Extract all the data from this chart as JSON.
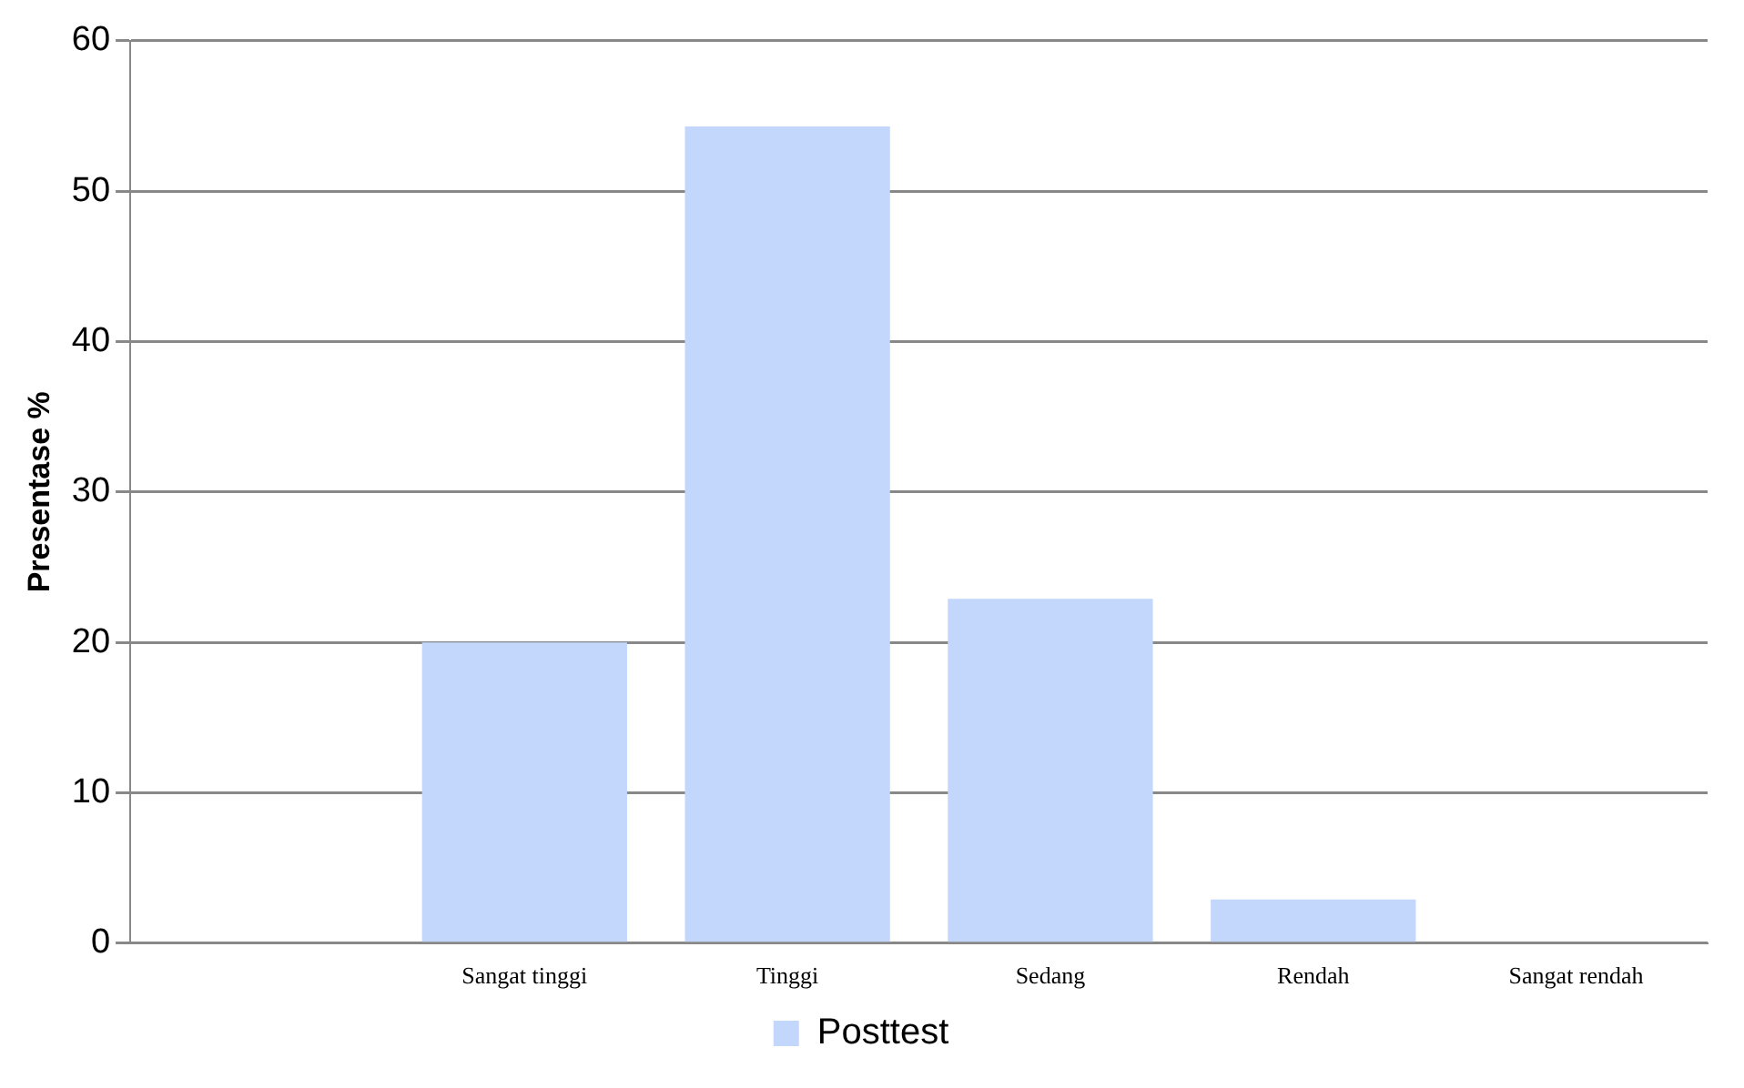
{
  "chart_data": {
    "type": "bar",
    "ylabel": "Presentase %",
    "categories": [
      null,
      "Sangat tinggi",
      "Tinggi",
      "Sedang",
      "Rendah",
      "Sangat rendah"
    ],
    "series": [
      {
        "name": "Posttest",
        "color": "#c2d7fb",
        "values": [
          null,
          20,
          54.3,
          22.9,
          2.9,
          0
        ]
      }
    ],
    "ylim": [
      0,
      60
    ],
    "yticks": [
      0,
      10,
      20,
      30,
      40,
      50,
      60
    ],
    "grid": "y",
    "legend": "bottom"
  }
}
